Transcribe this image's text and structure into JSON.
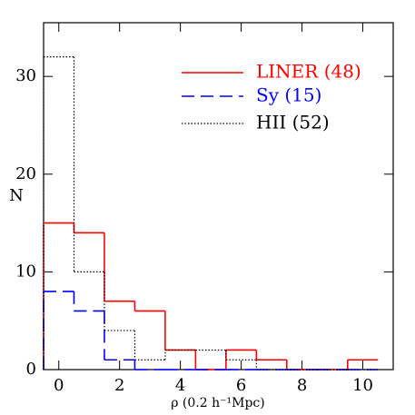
{
  "chart_data": {
    "type": "histogram",
    "xlabel": "ρ (0.2 h⁻¹Mpc)",
    "ylabel": "N",
    "bins": [
      -0.5,
      0.5,
      1.5,
      2.5,
      3.5,
      4.5,
      5.5,
      6.5,
      7.5,
      8.5,
      9.5,
      10.5
    ],
    "series": [
      {
        "name": "LINER (48)",
        "color": "#ff0000",
        "dash": "solid",
        "values": [
          15,
          14,
          7,
          6,
          2,
          0,
          2,
          1,
          0,
          0,
          1
        ]
      },
      {
        "name": "Sy (15)",
        "color": "#0000ff",
        "dash": "dashed",
        "values": [
          8,
          6,
          1,
          0,
          0,
          0,
          0,
          0,
          0,
          0,
          0
        ]
      },
      {
        "name": "HII (52)",
        "color": "#000000",
        "dash": "dotted",
        "values": [
          32,
          10,
          4,
          1,
          2,
          2,
          1,
          0,
          0,
          0,
          0
        ]
      }
    ],
    "xlim": [
      -0.5,
      11
    ],
    "ylim": [
      0,
      35.5
    ],
    "xticks": [
      0,
      2,
      4,
      6,
      8,
      10
    ],
    "yticks": [
      0,
      10,
      20,
      30
    ]
  }
}
